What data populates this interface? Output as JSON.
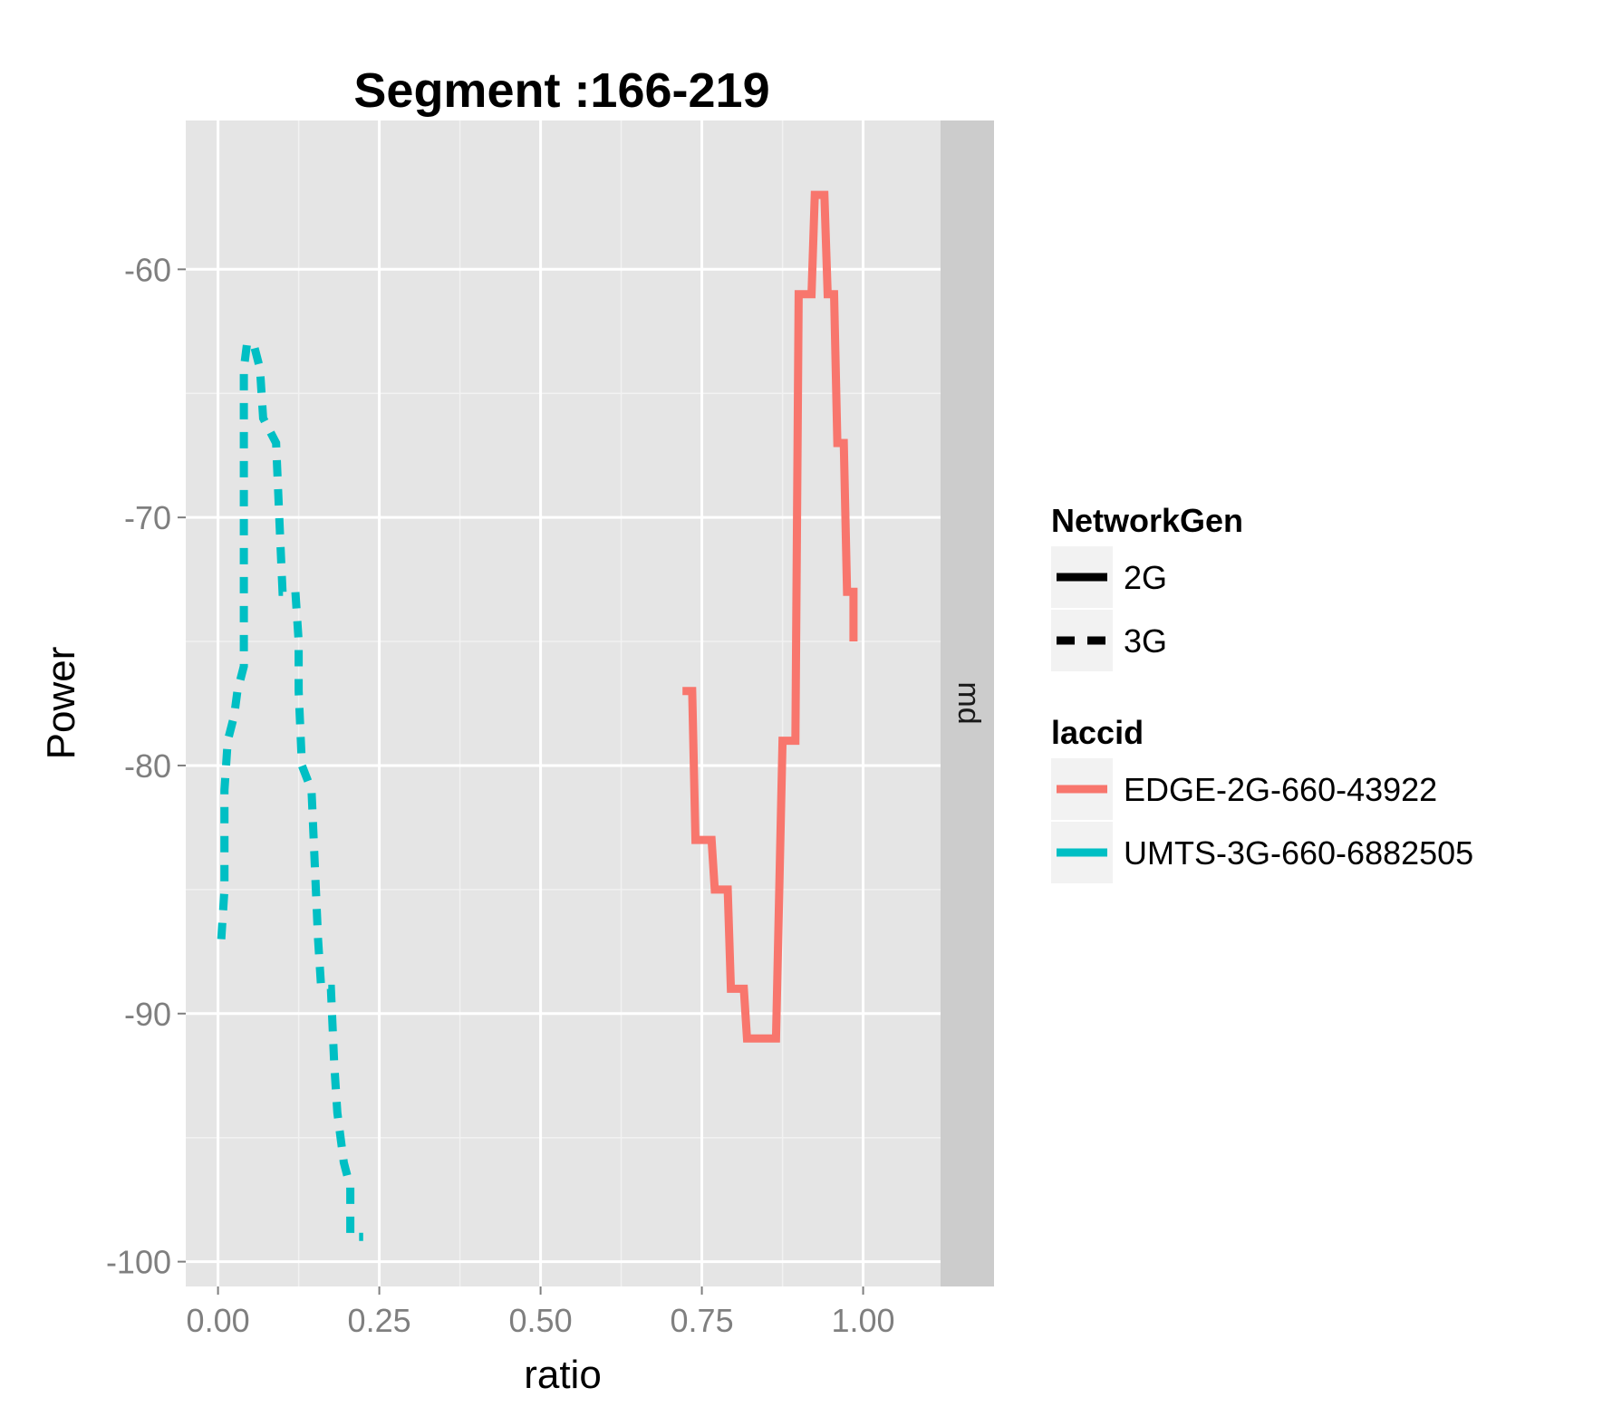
{
  "chart_data": {
    "type": "line",
    "title": "Segment :166-219",
    "xlabel": "ratio",
    "ylabel": "Power",
    "facet_label": "md",
    "xlim": [
      -0.05,
      1.12
    ],
    "ylim": [
      -101,
      -54
    ],
    "x_ticks": [
      0.0,
      0.25,
      0.5,
      0.75,
      1.0
    ],
    "x_tick_labels": [
      "0.00",
      "0.25",
      "0.50",
      "0.75",
      "1.00"
    ],
    "y_ticks": [
      -60,
      -70,
      -80,
      -90,
      -100
    ],
    "y_tick_labels": [
      "-60",
      "-70",
      "-80",
      "-90",
      "-100"
    ],
    "grid": true,
    "legend_position": "right",
    "legends": [
      {
        "title": "NetworkGen",
        "items": [
          {
            "label": "2G",
            "linetype": "solid",
            "color": "#000000"
          },
          {
            "label": "3G",
            "linetype": "dashed",
            "color": "#000000"
          }
        ]
      },
      {
        "title": "laccid",
        "items": [
          {
            "label": "EDGE-2G-660-43922",
            "linetype": "solid",
            "color": "#F8766D"
          },
          {
            "label": "UMTS-3G-660-6882505",
            "linetype": "solid",
            "color": "#00BFC4"
          }
        ]
      }
    ],
    "series": [
      {
        "name": "EDGE-2G-660-43922",
        "network_gen": "2G",
        "color": "#F8766D",
        "linetype": "solid",
        "points": [
          [
            0.72,
            -77
          ],
          [
            0.735,
            -77
          ],
          [
            0.74,
            -83
          ],
          [
            0.765,
            -83
          ],
          [
            0.77,
            -85
          ],
          [
            0.79,
            -85
          ],
          [
            0.795,
            -89
          ],
          [
            0.815,
            -89
          ],
          [
            0.82,
            -91
          ],
          [
            0.865,
            -91
          ],
          [
            0.875,
            -79
          ],
          [
            0.895,
            -79
          ],
          [
            0.9,
            -61
          ],
          [
            0.92,
            -61
          ],
          [
            0.925,
            -57
          ],
          [
            0.94,
            -57
          ],
          [
            0.945,
            -61
          ],
          [
            0.955,
            -61
          ],
          [
            0.96,
            -67
          ],
          [
            0.97,
            -67
          ],
          [
            0.975,
            -73
          ],
          [
            0.985,
            -73
          ],
          [
            0.985,
            -75
          ]
        ]
      },
      {
        "name": "UMTS-3G-660-6882505",
        "network_gen": "3G",
        "color": "#00BFC4",
        "linetype": "dashed",
        "points": [
          [
            0.005,
            -87
          ],
          [
            0.01,
            -85
          ],
          [
            0.01,
            -81
          ],
          [
            0.015,
            -79
          ],
          [
            0.025,
            -78
          ],
          [
            0.03,
            -77
          ],
          [
            0.04,
            -76
          ],
          [
            0.04,
            -64
          ],
          [
            0.045,
            -63
          ],
          [
            0.055,
            -63
          ],
          [
            0.065,
            -64
          ],
          [
            0.07,
            -66
          ],
          [
            0.09,
            -67
          ],
          [
            0.095,
            -70
          ],
          [
            0.1,
            -73
          ],
          [
            0.12,
            -73
          ],
          [
            0.125,
            -75
          ],
          [
            0.125,
            -77
          ],
          [
            0.13,
            -80
          ],
          [
            0.145,
            -81
          ],
          [
            0.15,
            -84
          ],
          [
            0.155,
            -87
          ],
          [
            0.16,
            -89
          ],
          [
            0.175,
            -89
          ],
          [
            0.18,
            -92
          ],
          [
            0.185,
            -94
          ],
          [
            0.195,
            -96
          ],
          [
            0.205,
            -97
          ],
          [
            0.205,
            -99
          ],
          [
            0.225,
            -99
          ]
        ]
      }
    ]
  }
}
